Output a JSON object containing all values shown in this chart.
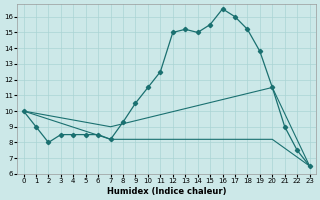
{
  "xlabel": "Humidex (Indice chaleur)",
  "bg_color": "#cce8e8",
  "grid_color": "#aad4d4",
  "line_color": "#1a7070",
  "xlim": [
    -0.5,
    23.5
  ],
  "ylim": [
    6,
    16.8
  ],
  "yticks": [
    6,
    7,
    8,
    9,
    10,
    11,
    12,
    13,
    14,
    15,
    16
  ],
  "xticks": [
    0,
    1,
    2,
    3,
    4,
    5,
    6,
    7,
    8,
    9,
    10,
    11,
    12,
    13,
    14,
    15,
    16,
    17,
    18,
    19,
    20,
    21,
    22,
    23
  ],
  "main_x": [
    0,
    1,
    2,
    3,
    4,
    5,
    6,
    7,
    8,
    9,
    10,
    11,
    12,
    13,
    14,
    15,
    16,
    17,
    18,
    19,
    20,
    21,
    22,
    23
  ],
  "main_y": [
    10,
    9,
    8,
    8.5,
    8.5,
    8.5,
    8.5,
    8.2,
    9.3,
    10.5,
    11.5,
    12.5,
    15.0,
    15.2,
    15.0,
    15.5,
    16.5,
    16.0,
    15.2,
    13.8,
    11.5,
    9.0,
    7.5,
    6.5
  ],
  "line2_x": [
    0,
    7,
    20,
    23
  ],
  "line2_y": [
    10,
    9.0,
    11.5,
    6.5
  ],
  "line3_x": [
    0,
    7,
    20,
    23
  ],
  "line3_y": [
    10,
    8.2,
    8.2,
    6.5
  ]
}
